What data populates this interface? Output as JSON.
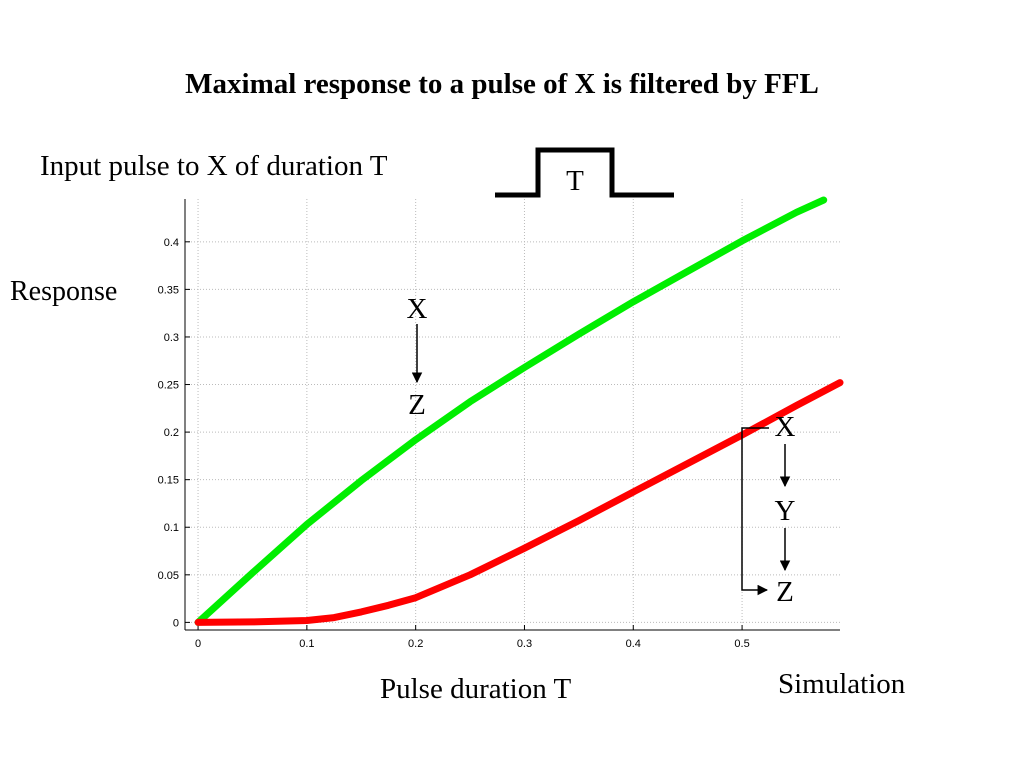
{
  "title": "Maximal response to a pulse of X is filtered by FFL",
  "pulse_label": "Input pulse to X of duration T",
  "pulse_symbol": "T",
  "ylabel": "Response",
  "xlabel": "Pulse duration T",
  "caption": "Simulation",
  "networks": {
    "direct": [
      "X",
      "Z"
    ],
    "ffl": [
      "X",
      "Y",
      "Z"
    ]
  },
  "chart_data": {
    "type": "line",
    "xlim": [
      -0.012,
      0.59
    ],
    "ylim": [
      -0.008,
      0.445
    ],
    "xticks": [
      0,
      0.1,
      0.2,
      0.3,
      0.4,
      0.5
    ],
    "yticks": [
      0,
      0.05,
      0.1,
      0.15,
      0.2,
      0.25,
      0.3,
      0.35,
      0.4
    ],
    "grid": true,
    "series": [
      {
        "color": "#00ee00",
        "x": [
          0,
          0.05,
          0.1,
          0.15,
          0.2,
          0.25,
          0.3,
          0.35,
          0.4,
          0.45,
          0.5,
          0.55,
          0.575
        ],
        "y": [
          0,
          0.052,
          0.103,
          0.149,
          0.192,
          0.232,
          0.268,
          0.303,
          0.337,
          0.369,
          0.401,
          0.431,
          0.444
        ]
      },
      {
        "color": "#ff0000",
        "x": [
          0,
          0.05,
          0.1,
          0.125,
          0.15,
          0.175,
          0.2,
          0.25,
          0.3,
          0.35,
          0.4,
          0.45,
          0.5,
          0.55,
          0.59
        ],
        "y": [
          0,
          0.0005,
          0.002,
          0.005,
          0.011,
          0.018,
          0.026,
          0.05,
          0.078,
          0.107,
          0.137,
          0.167,
          0.197,
          0.228,
          0.252
        ]
      }
    ]
  }
}
